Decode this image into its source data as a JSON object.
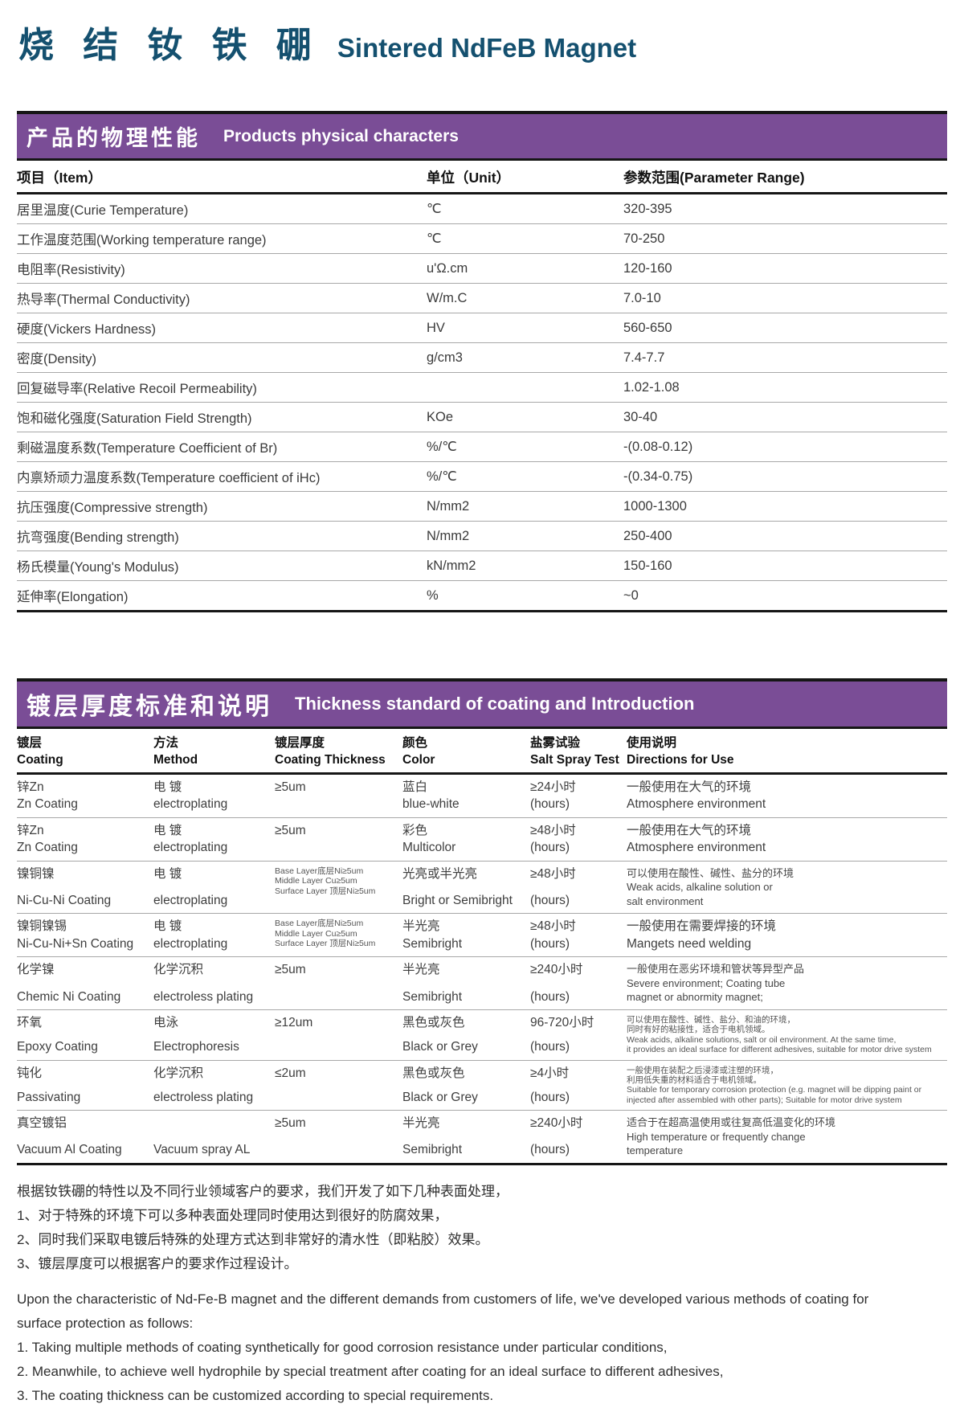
{
  "page": {
    "title_zh": "烧 结 钕 铁 硼",
    "title_en": "Sintered NdFeB Magnet"
  },
  "colors": {
    "banner_purple": "#7a4d96",
    "title_teal": "#14506f"
  },
  "physical": {
    "banner_zh": "产品的物理性能",
    "banner_en": "Products physical characters",
    "col_item": "项目（Item）",
    "col_unit": "单位（Unit）",
    "col_range": "参数范围(Parameter  Range)",
    "rows": [
      {
        "item": "居里温度(Curie Temperature)",
        "unit": "℃",
        "range": "320-395"
      },
      {
        "item": "工作温度范围(Working temperature range)",
        "unit": "℃",
        "range": "70-250"
      },
      {
        "item": "电阻率(Resistivity)",
        "unit": "u'Ω.cm",
        "range": "120-160"
      },
      {
        "item": "热导率(Thermal Conductivity)",
        "unit": "W/m.C",
        "range": "7.0-10"
      },
      {
        "item": "硬度(Vickers Hardness)",
        "unit": "HV",
        "range": "560-650"
      },
      {
        "item": "密度(Density)",
        "unit": "g/cm3",
        "range": "7.4-7.7"
      },
      {
        "item": "回复磁导率(Relative Recoil  Permeability)",
        "unit": "",
        "range": "1.02-1.08"
      },
      {
        "item": "饱和磁化强度(Saturation Field Strength)",
        "unit": "KOe",
        "range": "30-40"
      },
      {
        "item": "剩磁温度系数(Temperature Coefficient of  Br)",
        "unit": "%/℃",
        "range": "-(0.08-0.12)"
      },
      {
        "item": "内禀矫顽力温度系数(Temperature coefficient of iHc)",
        "unit": "%/℃",
        "range": "-(0.34-0.75)"
      },
      {
        "item": "抗压强度(Compressive strength)",
        "unit": "N/mm2",
        "range": "1000-1300"
      },
      {
        "item": "抗弯强度(Bending strength)",
        "unit": "N/mm2",
        "range": "250-400"
      },
      {
        "item": "杨氏模量(Young's Modulus)",
        "unit": "kN/mm2",
        "range": "150-160"
      },
      {
        "item": "延伸率(Elongation)",
        "unit": "%",
        "range": "~0"
      }
    ]
  },
  "coating": {
    "banner_zh": "镀层厚度标准和说明",
    "banner_en": "Thickness standard of coating and Introduction",
    "columns": [
      {
        "zh": "镀层",
        "en": "Coating"
      },
      {
        "zh": "方法",
        "en": "Method"
      },
      {
        "zh": "镀层厚度",
        "en": "Coating Thickness"
      },
      {
        "zh": "颜色",
        "en": "Color"
      },
      {
        "zh": "盐雾试验",
        "en": "Salt Spray Test"
      },
      {
        "zh": "使用说明",
        "en": "Directions for Use"
      }
    ],
    "rows": [
      {
        "coating_zh": "锌Zn",
        "coating_en": "Zn Coating",
        "method_zh": "电 镀",
        "method_en": "electroplating",
        "thickness": [
          "≥5um"
        ],
        "color_zh": "蓝白",
        "color_en": "blue-white",
        "salt_zh": "≥24小时",
        "salt_en": "(hours)",
        "dir_zh": [
          "一般使用在大气的环境"
        ],
        "dir_en": [
          "Atmosphere environment"
        ],
        "dir_size": "n"
      },
      {
        "coating_zh": "锌Zn",
        "coating_en": "Zn Coating",
        "method_zh": "电 镀",
        "method_en": "electroplating",
        "thickness": [
          "≥5um"
        ],
        "color_zh": "彩色",
        "color_en": "Multicolor",
        "salt_zh": "≥48小时",
        "salt_en": "(hours)",
        "dir_zh": [
          "一般使用在大气的环境"
        ],
        "dir_en": [
          "Atmosphere environment"
        ],
        "dir_size": "n"
      },
      {
        "coating_zh": "镍铜镍",
        "coating_en": "Ni-Cu-Ni Coating",
        "method_zh": "电 镀",
        "method_en": "electroplating",
        "thickness": [
          "Base Layer底层Ni≥5um",
          "Middle Layer Cu≥5um",
          "Surface Layer 顶层Ni≥5um"
        ],
        "color_zh": "光亮或半光亮",
        "color_en": "Bright or Semibright",
        "salt_zh": "≥48小时",
        "salt_en": "(hours)",
        "dir_zh": [
          "可以使用在酸性、碱性、盐分的环境"
        ],
        "dir_en": [
          "Weak acids, alkaline solution or",
          "salt environment"
        ],
        "dir_size": "s"
      },
      {
        "coating_zh": "镍铜镍锡",
        "coating_en": "Ni-Cu-Ni+Sn Coating",
        "method_zh": "电 镀",
        "method_en": "electroplating",
        "thickness": [
          "Base Layer底层Ni≥5um",
          "Middle Layer Cu≥5um",
          "Surface Layer 顶层Ni≥5um"
        ],
        "color_zh": "半光亮",
        "color_en": "Semibright",
        "salt_zh": "≥48小时",
        "salt_en": "(hours)",
        "dir_zh": [
          "一般使用在需要焊接的环境"
        ],
        "dir_en": [
          "Mangets  need welding"
        ],
        "dir_size": "n"
      },
      {
        "coating_zh": "化学镍",
        "coating_en": "Chemic Ni Coating",
        "method_zh": "化学沉积",
        "method_en": "electroless plating",
        "thickness": [
          "≥5um"
        ],
        "color_zh": "半光亮",
        "color_en": "Semibright",
        "salt_zh": "≥240小时",
        "salt_en": "(hours)",
        "dir_zh": [
          "一般使用在恶劣环境和管状等异型产品"
        ],
        "dir_en": [
          "Severe environment; Coating tube",
          "magnet or abnormity magnet;"
        ],
        "dir_size": "s"
      },
      {
        "coating_zh": "环氧",
        "coating_en": "Epoxy Coating",
        "method_zh": "电泳",
        "method_en": "Electrophoresis",
        "thickness": [
          "≥12um"
        ],
        "color_zh": "黑色或灰色",
        "color_en": "Black or Grey",
        "salt_zh": "96-720小时",
        "salt_en": "(hours)",
        "dir_zh": [
          "可以使用在酸性、碱性、盐分、和油的环境，",
          "同时有好的粘接性，适合于电机领域。"
        ],
        "dir_en": [
          "Weak acids, alkaline solutions, salt or oil environment. At the same time,",
          "it provides an ideal surface for different adhesives, suitable for motor drive system"
        ],
        "dir_size": "xs"
      },
      {
        "coating_zh": "钝化",
        "coating_en": "Passivating",
        "method_zh": "化学沉积",
        "method_en": "electroless plating",
        "thickness": [
          "≤2um"
        ],
        "color_zh": "黑色或灰色",
        "color_en": "Black or Grey",
        "salt_zh": "≥4小时",
        "salt_en": "(hours)",
        "dir_zh": [
          "一般使用在装配之后浸漆或注塑的环境，",
          "利用低失重的材料适合于电机领域。"
        ],
        "dir_en": [
          "Suitable for temporary corrosion protection (e.g. magnet will be dipping paint or",
          "injected after assembled with other parts); Suitable for motor drive system"
        ],
        "dir_size": "xs"
      },
      {
        "coating_zh": "真空镀铝",
        "coating_en": "Vacuum Al Coating",
        "method_zh": "",
        "method_en": "Vacuum spray AL",
        "thickness": [
          "≥5um"
        ],
        "color_zh": "半光亮",
        "color_en": "Semibright",
        "salt_zh": "≥240小时",
        "salt_en": "(hours)",
        "dir_zh": [
          "适合于在超高温使用或往复高低温变化的环境"
        ],
        "dir_en": [
          "High temperature or frequently change",
          "temperature"
        ],
        "dir_size": "s"
      }
    ]
  },
  "notes": {
    "zh": [
      "根据钕铁硼的特性以及不同行业领域客户的要求，我们开发了如下几种表面处理，",
      "1、对于特殊的环境下可以多种表面处理同时使用达到很好的防腐效果，",
      "2、同时我们采取电镀后特殊的处理方式达到非常好的清水性（即粘胶）效果。",
      "3、镀层厚度可以根据客户的要求作过程设计。"
    ],
    "en": [
      "Upon the characteristic of Nd-Fe-B magnet and the different demands from customers of life, we've developed various methods of coating for surface protection as follows:",
      "1. Taking multiple methods of coating synthetically for good corrosion resistance under particular conditions,",
      "2. Meanwhile, to achieve well hydrophile by special treatment after coating for an ideal surface to different adhesives,",
      "3. The coating thickness can be customized according to special requirements."
    ]
  }
}
